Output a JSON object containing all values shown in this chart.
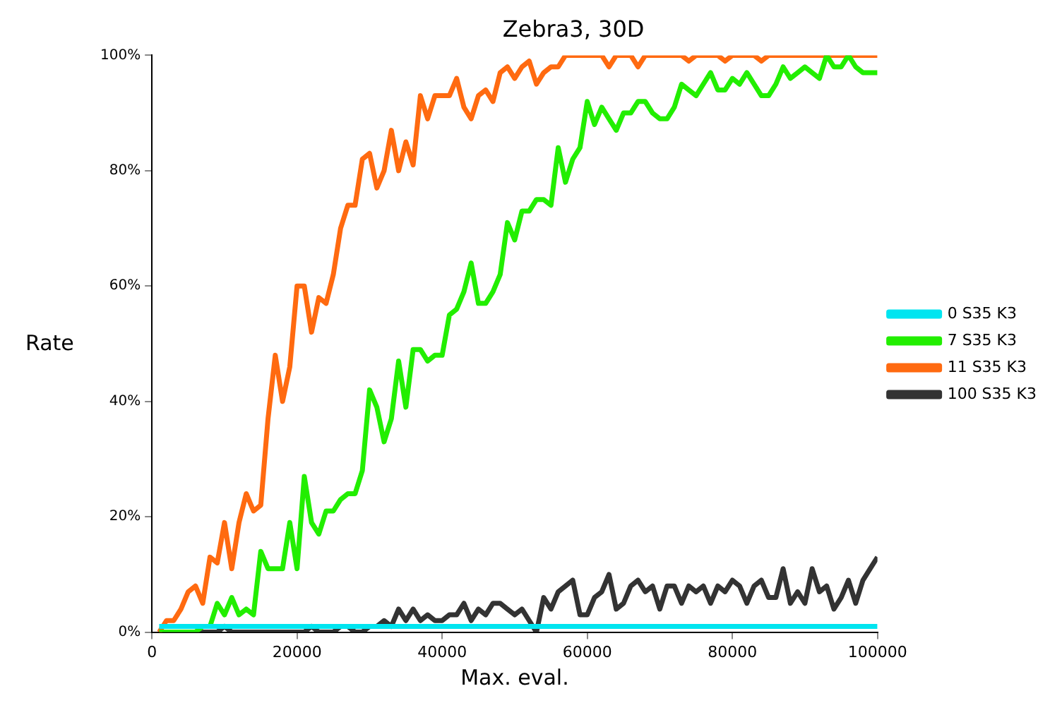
{
  "chart_data": {
    "type": "line",
    "title": "Zebra3, 30D",
    "xlabel": "Max. eval.",
    "ylabel": "Rate",
    "legend": "right",
    "grid": false,
    "marker": "none",
    "line_style": "solid",
    "x": [
      1000,
      2000,
      3000,
      4000,
      5000,
      6000,
      7000,
      8000,
      9000,
      10000,
      11000,
      12000,
      13000,
      14000,
      15000,
      16000,
      17000,
      18000,
      19000,
      20000,
      21000,
      22000,
      23000,
      24000,
      25000,
      26000,
      27000,
      28000,
      29000,
      30000,
      31000,
      32000,
      33000,
      34000,
      35000,
      36000,
      37000,
      38000,
      39000,
      40000,
      41000,
      42000,
      43000,
      44000,
      45000,
      46000,
      47000,
      48000,
      49000,
      50000,
      51000,
      52000,
      53000,
      54000,
      55000,
      56000,
      57000,
      58000,
      59000,
      60000,
      61000,
      62000,
      63000,
      64000,
      65000,
      66000,
      67000,
      68000,
      69000,
      70000,
      71000,
      72000,
      73000,
      74000,
      75000,
      76000,
      77000,
      78000,
      79000,
      80000,
      81000,
      82000,
      83000,
      84000,
      85000,
      86000,
      87000,
      88000,
      89000,
      90000,
      91000,
      92000,
      93000,
      94000,
      95000,
      96000,
      97000,
      98000,
      99000,
      100000
    ],
    "xlim": [
      0,
      100000
    ],
    "xticks": [
      0,
      20000,
      40000,
      60000,
      80000,
      100000
    ],
    "ylim": [
      0,
      100
    ],
    "yticks": [
      {
        "value": 0,
        "label": "0%"
      },
      {
        "value": 20,
        "label": "20%"
      },
      {
        "value": 40,
        "label": "40%"
      },
      {
        "value": 60,
        "label": "60%"
      },
      {
        "value": 80,
        "label": "80%"
      },
      {
        "value": 100,
        "label": "100%"
      }
    ],
    "series": [
      {
        "name": "0 S35 K3",
        "color": "#00e5f0",
        "x": [
          1000,
          100000
        ],
        "values": [
          1,
          1
        ]
      },
      {
        "name": "7 S35 K3",
        "color": "#22ee00",
        "values": [
          0,
          0,
          0,
          0,
          0,
          0,
          1,
          1,
          5,
          3,
          6,
          3,
          4,
          3,
          14,
          11,
          11,
          11,
          19,
          11,
          27,
          19,
          17,
          21,
          21,
          23,
          24,
          24,
          28,
          42,
          39,
          33,
          37,
          47,
          39,
          49,
          49,
          47,
          48,
          48,
          55,
          56,
          59,
          64,
          57,
          57,
          59,
          62,
          71,
          68,
          73,
          73,
          75,
          75,
          74,
          84,
          78,
          82,
          84,
          92,
          88,
          91,
          89,
          87,
          90,
          90,
          92,
          92,
          90,
          89,
          89,
          91,
          95,
          94,
          93,
          95,
          97,
          94,
          94,
          96,
          95,
          97,
          95,
          93,
          93,
          95,
          98,
          96,
          97,
          98,
          97,
          96,
          100,
          98,
          98,
          100,
          98,
          97,
          97,
          97
        ]
      },
      {
        "name": "11 S35 K3",
        "color": "#ff6a10",
        "values": [
          0,
          2,
          2,
          4,
          7,
          8,
          5,
          13,
          12,
          19,
          11,
          19,
          24,
          21,
          22,
          37,
          48,
          40,
          46,
          60,
          60,
          52,
          58,
          57,
          62,
          70,
          74,
          74,
          82,
          83,
          77,
          80,
          87,
          80,
          85,
          81,
          93,
          89,
          93,
          93,
          93,
          96,
          91,
          89,
          93,
          94,
          92,
          97,
          98,
          96,
          98,
          99,
          95,
          97,
          98,
          98,
          100,
          100,
          100,
          100,
          100,
          100,
          98,
          100,
          100,
          100,
          98,
          100,
          100,
          100,
          100,
          100,
          100,
          99,
          100,
          100,
          100,
          100,
          99,
          100,
          100,
          100,
          100,
          99,
          100,
          100,
          100,
          100,
          100,
          100,
          100,
          100,
          100,
          100,
          100,
          100,
          100,
          100,
          100,
          100
        ]
      },
      {
        "name": "100 S35 K3",
        "color": "#333333",
        "values": [
          0,
          0,
          0,
          0,
          0,
          0,
          0,
          0,
          0,
          1,
          0,
          0,
          0,
          0,
          0,
          0,
          0,
          0,
          0,
          0,
          0,
          1,
          0,
          0,
          0,
          1,
          1,
          0,
          0,
          1,
          1,
          2,
          1,
          4,
          2,
          4,
          2,
          3,
          2,
          2,
          3,
          3,
          5,
          2,
          4,
          3,
          5,
          5,
          4,
          3,
          4,
          2,
          0,
          6,
          4,
          7,
          8,
          9,
          3,
          3,
          6,
          7,
          10,
          4,
          5,
          8,
          9,
          7,
          8,
          4,
          8,
          8,
          5,
          8,
          7,
          8,
          5,
          8,
          7,
          9,
          8,
          5,
          8,
          9,
          6,
          6,
          11,
          5,
          7,
          5,
          11,
          7,
          8,
          4,
          6,
          9,
          5,
          9,
          11,
          13
        ]
      }
    ]
  }
}
